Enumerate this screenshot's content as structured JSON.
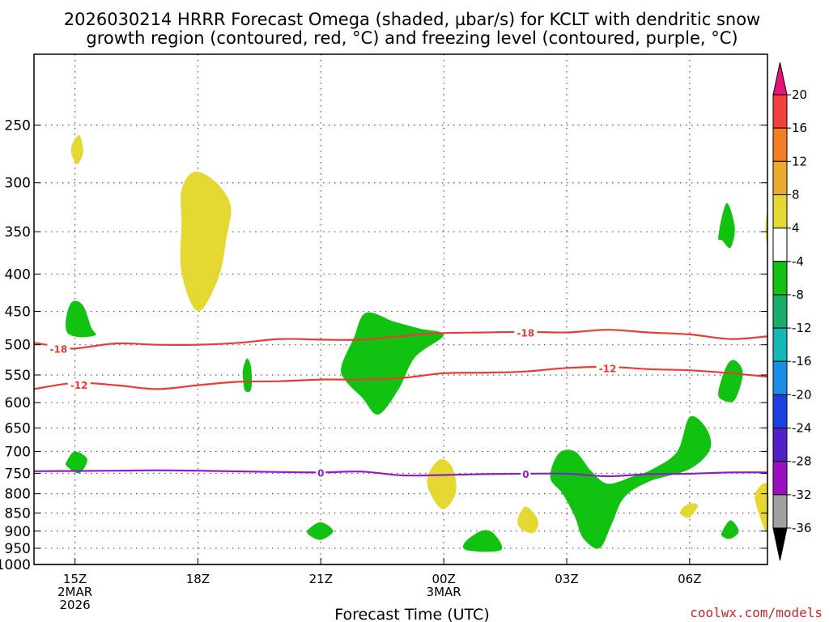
{
  "chart_data": {
    "type": "time-height cross section",
    "title_lines": [
      "2026030214 HRRR Forecast Omega (shaded, µbar/s) for KCLT with dendritic snow",
      "growth region (contoured, red, °C) and freezing level (contoured, purple, °C)"
    ],
    "xlabel": "Forecast Time (UTC)",
    "credit": "coolwx.com/models",
    "x_ticks": [
      {
        "label": "15Z",
        "sub": [
          "2MAR",
          "2026"
        ],
        "hour": 15
      },
      {
        "label": "18Z",
        "sub": [],
        "hour": 18
      },
      {
        "label": "21Z",
        "sub": [],
        "hour": 21
      },
      {
        "label": "00Z",
        "sub": [
          "3MAR"
        ],
        "hour": 24
      },
      {
        "label": "03Z",
        "sub": [],
        "hour": 27
      },
      {
        "label": "06Z",
        "sub": [],
        "hour": 30
      }
    ],
    "xlim_hours": [
      14.0,
      31.9
    ],
    "y_levels_hpa": [
      250,
      300,
      350,
      400,
      450,
      500,
      550,
      600,
      650,
      700,
      750,
      800,
      850,
      900,
      950,
      1000
    ],
    "ylim_hpa": [
      200,
      1000
    ],
    "y_scale": "log",
    "colorbar": {
      "labels": [
        "20",
        "16",
        "12",
        "8",
        "4",
        "-4",
        "-8",
        "-12",
        "-16",
        "-20",
        "-24",
        "-28",
        "-32",
        "-36"
      ],
      "colors": [
        "#e8127a",
        "#f04040",
        "#f47d28",
        "#eeaa30",
        "#e6d832",
        "#ffffff",
        "#11c211",
        "#1aad6a",
        "#14b8b4",
        "#1a8ee6",
        "#1a40e0",
        "#5020c8",
        "#9a10c0",
        "#a0a0a0",
        "#000000"
      ]
    },
    "contours": [
      {
        "name": "-18",
        "color": "#ee3a32",
        "label": "-18",
        "points": [
          [
            14.0,
            497
          ],
          [
            14.6,
            503
          ],
          [
            15.0,
            506
          ],
          [
            16.0,
            498
          ],
          [
            17.0,
            500
          ],
          [
            18.0,
            500
          ],
          [
            19.0,
            497
          ],
          [
            20.0,
            491
          ],
          [
            21.0,
            492
          ],
          [
            22.0,
            492
          ],
          [
            23.0,
            486
          ],
          [
            24.0,
            482
          ],
          [
            25.0,
            481
          ],
          [
            26.0,
            480
          ],
          [
            27.0,
            481
          ],
          [
            28.0,
            477
          ],
          [
            29.0,
            481
          ],
          [
            30.0,
            484
          ],
          [
            31.0,
            491
          ],
          [
            31.9,
            487
          ]
        ],
        "label_at": [
          [
            14.6,
            506
          ],
          [
            26.0,
            481
          ]
        ]
      },
      {
        "name": "-12",
        "color": "#ee3a32",
        "label": "-12",
        "points": [
          [
            14.0,
            575
          ],
          [
            15.0,
            564
          ],
          [
            16.0,
            568
          ],
          [
            17.0,
            575
          ],
          [
            18.0,
            568
          ],
          [
            19.0,
            562
          ],
          [
            20.0,
            561
          ],
          [
            21.0,
            558
          ],
          [
            22.0,
            558
          ],
          [
            23.0,
            555
          ],
          [
            24.0,
            547
          ],
          [
            25.0,
            546
          ],
          [
            26.0,
            544
          ],
          [
            27.0,
            538
          ],
          [
            28.0,
            536
          ],
          [
            29.0,
            540
          ],
          [
            30.0,
            542
          ],
          [
            31.0,
            547
          ],
          [
            31.9,
            553
          ]
        ],
        "label_at": [
          [
            15.1,
            567
          ],
          [
            28.0,
            538
          ]
        ]
      },
      {
        "name": "0",
        "color": "#8a1ec8",
        "label": "0",
        "points": [
          [
            14.0,
            745
          ],
          [
            16.0,
            744
          ],
          [
            17.0,
            743
          ],
          [
            18.0,
            744
          ],
          [
            20.0,
            747
          ],
          [
            21.0,
            748
          ],
          [
            22.0,
            746
          ],
          [
            23.0,
            755
          ],
          [
            24.0,
            754
          ],
          [
            25.0,
            752
          ],
          [
            26.0,
            751
          ],
          [
            27.0,
            751
          ],
          [
            28.0,
            757
          ],
          [
            29.0,
            752
          ],
          [
            30.0,
            751
          ],
          [
            31.0,
            748
          ],
          [
            31.9,
            748
          ]
        ],
        "label_at": [
          [
            21.0,
            748
          ],
          [
            26.0,
            751
          ]
        ]
      }
    ],
    "omega_regions": [
      {
        "category": "4",
        "points": [
          [
            14.9,
            270
          ],
          [
            15.1,
            258
          ],
          [
            15.2,
            272
          ],
          [
            15.05,
            283
          ]
        ]
      },
      {
        "category": "4",
        "points": [
          [
            17.6,
            307
          ],
          [
            17.9,
            290
          ],
          [
            18.4,
            298
          ],
          [
            18.8,
            322
          ],
          [
            18.7,
            356
          ],
          [
            18.5,
            405
          ],
          [
            18.0,
            450
          ],
          [
            17.6,
            398
          ],
          [
            17.6,
            340
          ]
        ]
      },
      {
        "category": "-8",
        "points": [
          [
            14.8,
            454
          ],
          [
            14.95,
            436
          ],
          [
            15.2,
            442
          ],
          [
            15.4,
            474
          ],
          [
            15.5,
            485
          ],
          [
            15.1,
            488
          ],
          [
            14.8,
            480
          ]
        ]
      },
      {
        "category": "-8",
        "points": [
          [
            19.1,
            540
          ],
          [
            19.2,
            522
          ],
          [
            19.3,
            538
          ],
          [
            19.3,
            575
          ],
          [
            19.15,
            578
          ],
          [
            19.1,
            555
          ]
        ]
      },
      {
        "category": "-8",
        "points": [
          [
            21.5,
            536
          ],
          [
            21.8,
            490
          ],
          [
            22.1,
            452
          ],
          [
            22.8,
            465
          ],
          [
            23.4,
            475
          ],
          [
            24.0,
            485
          ],
          [
            23.3,
            520
          ],
          [
            22.9,
            575
          ],
          [
            22.4,
            623
          ],
          [
            22.0,
            590
          ],
          [
            21.6,
            560
          ]
        ]
      },
      {
        "category": "-8",
        "points": [
          [
            14.8,
            722
          ],
          [
            15.0,
            700
          ],
          [
            15.3,
            718
          ],
          [
            15.1,
            750
          ],
          [
            14.8,
            733
          ]
        ]
      },
      {
        "category": "-8",
        "points": [
          [
            20.7,
            895
          ],
          [
            21.0,
            875
          ],
          [
            21.3,
            900
          ],
          [
            21.0,
            925
          ],
          [
            20.7,
            910
          ]
        ]
      },
      {
        "category": "-8",
        "points": [
          [
            24.5,
            935
          ],
          [
            24.9,
            900
          ],
          [
            25.2,
            905
          ],
          [
            25.4,
            955
          ],
          [
            24.6,
            957
          ]
        ]
      },
      {
        "category": "4",
        "points": [
          [
            23.6,
            760
          ],
          [
            23.9,
            718
          ],
          [
            24.2,
            735
          ],
          [
            24.3,
            795
          ],
          [
            24.0,
            840
          ],
          [
            23.7,
            805
          ]
        ]
      },
      {
        "category": "4",
        "points": [
          [
            25.8,
            870
          ],
          [
            26.0,
            833
          ],
          [
            26.3,
            870
          ],
          [
            26.2,
            905
          ],
          [
            25.9,
            895
          ]
        ]
      },
      {
        "category": "-8",
        "points": [
          [
            26.6,
            760
          ],
          [
            26.8,
            705
          ],
          [
            27.2,
            700
          ],
          [
            27.6,
            745
          ],
          [
            28.0,
            775
          ],
          [
            28.6,
            758
          ],
          [
            29.1,
            740
          ],
          [
            29.7,
            700
          ],
          [
            30.0,
            628
          ],
          [
            30.4,
            650
          ],
          [
            30.5,
            695
          ],
          [
            30.0,
            740
          ],
          [
            29.0,
            770
          ],
          [
            28.4,
            810
          ],
          [
            28.1,
            880
          ],
          [
            27.8,
            950
          ],
          [
            27.4,
            920
          ],
          [
            27.2,
            860
          ],
          [
            26.9,
            800
          ]
        ]
      },
      {
        "category": "4",
        "points": [
          [
            29.8,
            840
          ],
          [
            30.0,
            825
          ],
          [
            30.2,
            830
          ],
          [
            30.0,
            862
          ],
          [
            29.8,
            855
          ]
        ]
      },
      {
        "category": "-8",
        "points": [
          [
            30.7,
            355
          ],
          [
            30.9,
            320
          ],
          [
            31.1,
            345
          ],
          [
            31.0,
            368
          ],
          [
            30.8,
            360
          ]
        ]
      },
      {
        "category": "-8",
        "points": [
          [
            30.7,
            580
          ],
          [
            30.9,
            535
          ],
          [
            31.1,
            525
          ],
          [
            31.3,
            547
          ],
          [
            31.1,
            595
          ],
          [
            30.8,
            595
          ]
        ]
      },
      {
        "category": "-8",
        "points": [
          [
            30.8,
            900
          ],
          [
            31.0,
            870
          ],
          [
            31.2,
            900
          ],
          [
            31.0,
            922
          ],
          [
            30.8,
            915
          ]
        ]
      },
      {
        "category": "4",
        "points": [
          [
            31.6,
            800
          ],
          [
            31.9,
            778
          ],
          [
            31.9,
            900
          ],
          [
            31.7,
            855
          ]
        ]
      },
      {
        "category": "4",
        "points": [
          [
            31.9,
            330
          ],
          [
            31.85,
            345
          ],
          [
            31.9,
            370
          ]
        ]
      }
    ]
  }
}
